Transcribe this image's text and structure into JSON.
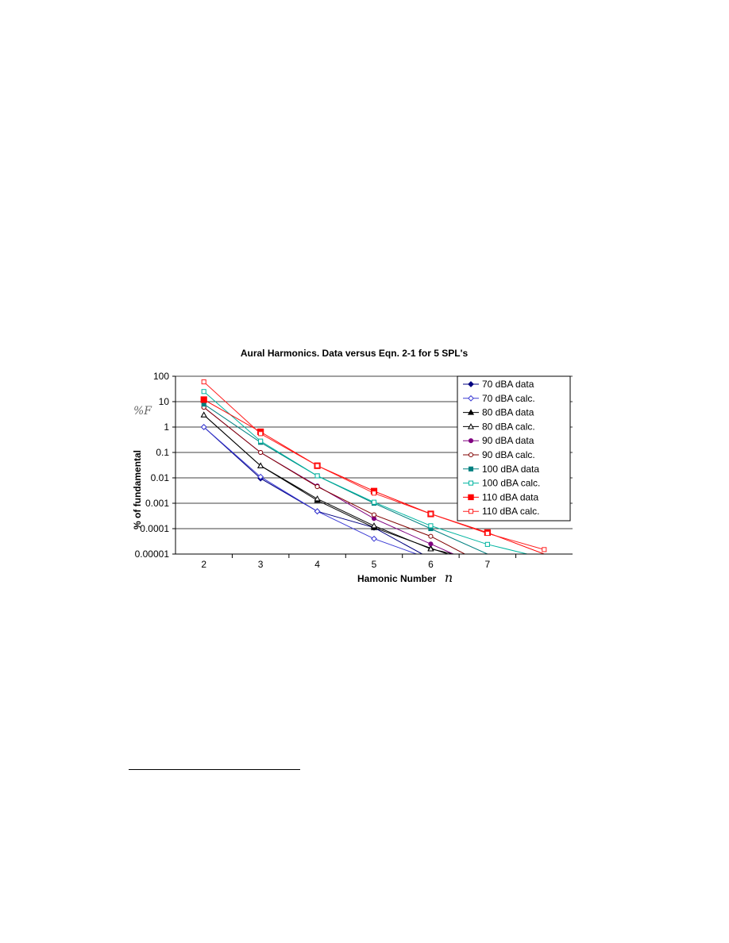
{
  "chart_data": {
    "type": "line",
    "title": "Aural Harmonics. Data versus Eqn. 2-1 for 5 SPL's",
    "xlabel": "Hamonic Number",
    "xlabel_var": "n",
    "ylabel": "% of fundamental",
    "ylabel_var": "%F",
    "yscale": "log",
    "x_ticks": [
      "2",
      "3",
      "4",
      "5",
      "6",
      "7"
    ],
    "xlim": [
      1.5,
      8.5
    ],
    "y_ticks": [
      "100",
      "10",
      "1",
      "0.1",
      "0.01",
      "0.001",
      "0.0001",
      "0.00001"
    ],
    "ylim": [
      1e-05,
      100
    ],
    "grid": "horizontal",
    "legend_position": "right",
    "series": [
      {
        "name": "70 dBA data",
        "color": "#000080",
        "marker": "diamond",
        "filled": true,
        "points": [
          [
            2,
            1
          ],
          [
            3,
            0.0095
          ],
          [
            4,
            0.00048
          ],
          [
            5,
            0.00011
          ],
          [
            5.85,
            1e-05
          ]
        ]
      },
      {
        "name": "70 dBA calc.",
        "color": "#3a3ad4",
        "marker": "diamond",
        "filled": false,
        "points": [
          [
            2,
            1
          ],
          [
            3,
            0.011
          ],
          [
            4,
            0.00048
          ],
          [
            5,
            4e-05
          ],
          [
            5.75,
            1e-05
          ]
        ]
      },
      {
        "name": "80 dBA data",
        "color": "#000000",
        "marker": "triangle",
        "filled": true,
        "points": [
          [
            2,
            3
          ],
          [
            3,
            0.03
          ],
          [
            4,
            0.0013
          ],
          [
            5,
            0.00011
          ],
          [
            6,
            1.7e-05
          ],
          [
            6.3,
            1e-05
          ]
        ]
      },
      {
        "name": "80 dBA calc.",
        "color": "#000000",
        "marker": "triangle",
        "filled": false,
        "points": [
          [
            2,
            3
          ],
          [
            3,
            0.03
          ],
          [
            4,
            0.0015
          ],
          [
            5,
            0.00013
          ],
          [
            6,
            1.6e-05
          ],
          [
            6.4,
            1e-05
          ]
        ]
      },
      {
        "name": "90 dBA data",
        "color": "#800080",
        "marker": "circle",
        "filled": true,
        "points": [
          [
            2,
            6
          ],
          [
            3,
            0.1
          ],
          [
            4,
            0.0048
          ],
          [
            5,
            0.00025
          ],
          [
            6,
            2.5e-05
          ],
          [
            6.4,
            1e-05
          ]
        ]
      },
      {
        "name": "90 dBA calc.",
        "color": "#800000",
        "marker": "circle",
        "filled": false,
        "points": [
          [
            2,
            6
          ],
          [
            3,
            0.1
          ],
          [
            4,
            0.0045
          ],
          [
            5,
            0.00035
          ],
          [
            6,
            5e-05
          ],
          [
            6.6,
            1e-05
          ]
        ]
      },
      {
        "name": "100 dBA data",
        "color": "#008080",
        "marker": "square",
        "filled": true,
        "points": [
          [
            2,
            8
          ],
          [
            3,
            0.25
          ],
          [
            4,
            0.012
          ],
          [
            5,
            0.001
          ],
          [
            6,
            0.0001
          ],
          [
            7,
            1e-05
          ]
        ]
      },
      {
        "name": "100 dBA calc.",
        "color": "#00b4a0",
        "marker": "square",
        "filled": false,
        "points": [
          [
            2,
            25
          ],
          [
            3,
            0.28
          ],
          [
            4,
            0.012
          ],
          [
            5,
            0.0011
          ],
          [
            6,
            0.00013
          ],
          [
            7,
            2.4e-05
          ],
          [
            7.7,
            1e-05
          ]
        ]
      },
      {
        "name": "110 dBA data",
        "color": "#ff0000",
        "marker": "square",
        "filled": true,
        "points": [
          [
            2,
            12
          ],
          [
            3,
            0.65
          ],
          [
            4,
            0.03
          ],
          [
            5,
            0.003
          ],
          [
            6,
            0.00038
          ],
          [
            7,
            7e-05
          ],
          [
            8,
            1e-05
          ]
        ]
      },
      {
        "name": "110 dBA calc.",
        "color": "#ff2020",
        "marker": "square",
        "filled": false,
        "points": [
          [
            2,
            60
          ],
          [
            3,
            0.55
          ],
          [
            4,
            0.03
          ],
          [
            5,
            0.0025
          ],
          [
            6,
            0.00038
          ],
          [
            7,
            6.5e-05
          ],
          [
            8,
            1.5e-05
          ]
        ]
      }
    ]
  }
}
